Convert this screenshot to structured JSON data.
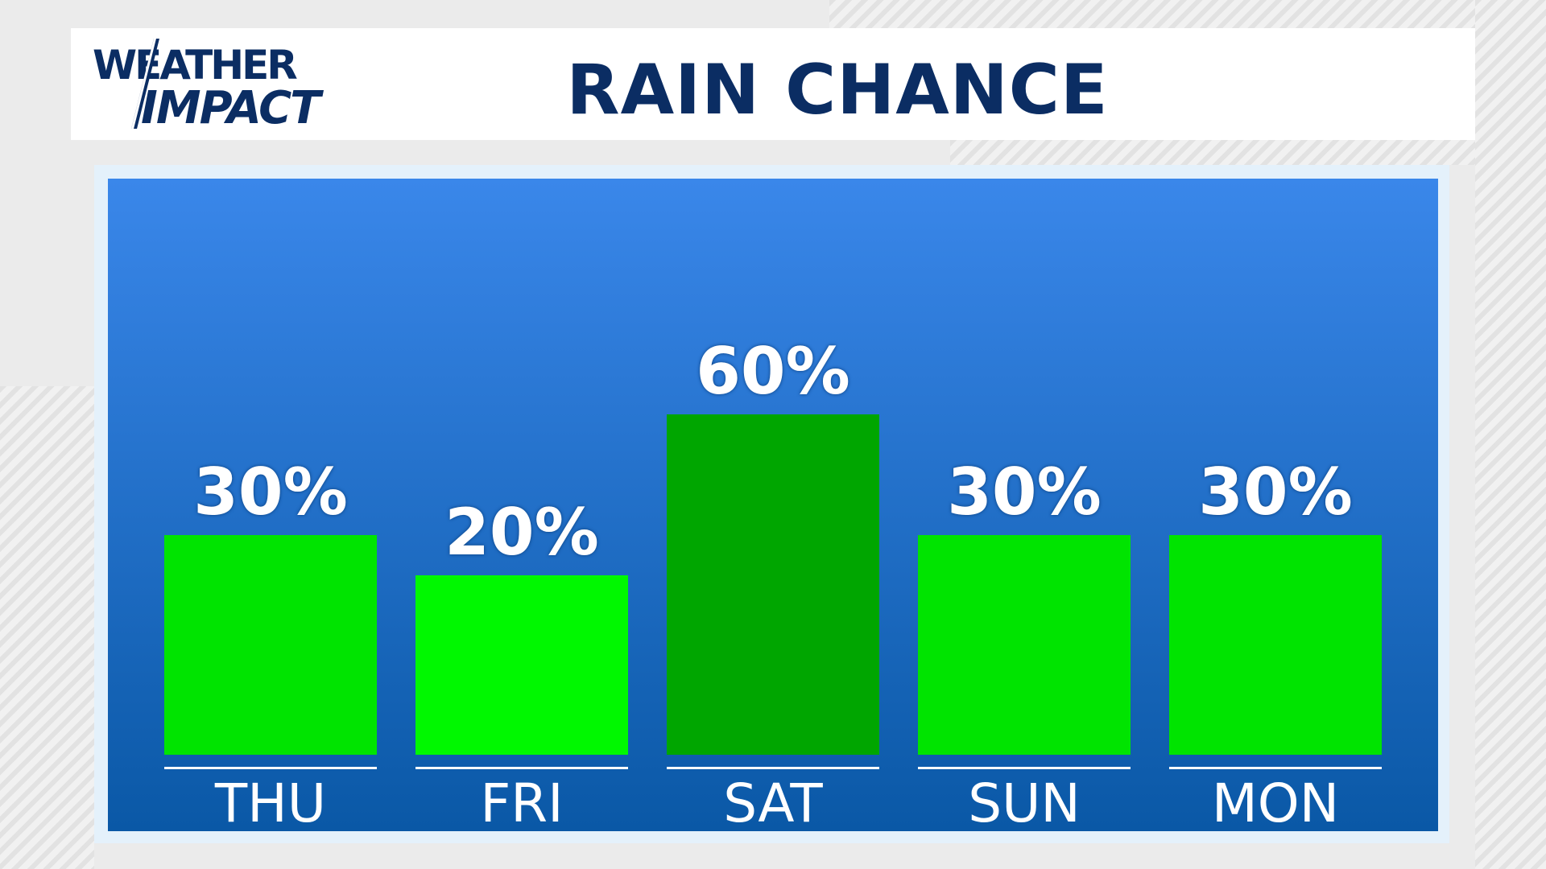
{
  "header": {
    "logo_line1": "WEATHER",
    "logo_line2": "IMPACT",
    "title": "RAIN CHANCE"
  },
  "chart_data": {
    "type": "bar",
    "title": "RAIN CHANCE",
    "categories": [
      "THU",
      "FRI",
      "SAT",
      "SUN",
      "MON"
    ],
    "values": [
      30,
      20,
      60,
      30,
      30
    ],
    "labels": [
      "30%",
      "20%",
      "60%",
      "30%",
      "30%"
    ],
    "unit": "%",
    "colors": [
      "#00e400",
      "#00f800",
      "#00a600",
      "#00e400",
      "#00e400"
    ],
    "background_gradient": [
      "#3a87ea",
      "#0a58a6"
    ],
    "grid": false
  }
}
